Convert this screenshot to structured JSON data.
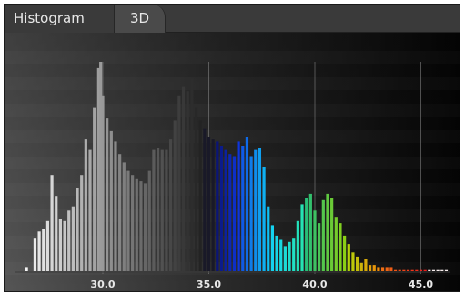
{
  "tabs": [
    {
      "label": "Histogram",
      "active": false
    },
    {
      "label": "3D",
      "active": true
    }
  ],
  "chart_data": {
    "type": "bar",
    "x_ticks": [
      30.0,
      35.0,
      40.0,
      45.0
    ],
    "x_tick_labels": [
      "30.0",
      "35.0",
      "40.0",
      "45.0"
    ],
    "xlim": [
      26.0,
      46.4
    ],
    "ylim": [
      0,
      100
    ],
    "grid": "vertical lines at ticks",
    "x": [
      26.4,
      26.8,
      27.0,
      27.2,
      27.4,
      27.6,
      27.8,
      28.0,
      28.2,
      28.4,
      28.6,
      28.8,
      29.0,
      29.2,
      29.4,
      29.6,
      29.8,
      29.9,
      30.0,
      30.2,
      30.4,
      30.6,
      30.8,
      31.0,
      31.2,
      31.4,
      31.6,
      31.8,
      32.0,
      32.2,
      32.4,
      32.6,
      32.8,
      33.0,
      33.2,
      33.4,
      33.6,
      33.8,
      34.0,
      34.2,
      34.4,
      34.6,
      34.8,
      35.0,
      35.2,
      35.4,
      35.6,
      35.8,
      36.0,
      36.2,
      36.4,
      36.6,
      36.8,
      37.0,
      37.2,
      37.4,
      37.6,
      37.8,
      38.0,
      38.2,
      38.4,
      38.6,
      38.8,
      39.0,
      39.2,
      39.4,
      39.6,
      39.8,
      40.0,
      40.2,
      40.4,
      40.6,
      40.8,
      41.0,
      41.2,
      41.4,
      41.6,
      41.8,
      42.0,
      42.2,
      42.4,
      42.6,
      42.8,
      43.0,
      43.2,
      43.4,
      43.6,
      43.8,
      44.0,
      44.2,
      44.4,
      44.6,
      44.8,
      45.0,
      45.2,
      45.4,
      45.6,
      45.8,
      46.0,
      46.2
    ],
    "values": [
      2,
      16,
      19,
      20,
      24,
      46,
      36,
      25,
      24,
      29,
      31,
      40,
      46,
      63,
      58,
      78,
      97,
      100,
      84,
      73,
      67,
      62,
      56,
      52,
      48,
      46,
      44,
      43,
      42,
      48,
      58,
      59,
      58,
      58,
      63,
      72,
      84,
      88,
      86,
      92,
      78,
      72,
      68,
      64,
      63,
      62,
      60,
      58,
      56,
      55,
      62,
      60,
      64,
      55,
      58,
      59,
      50,
      31,
      22,
      17,
      15,
      12,
      14,
      16,
      24,
      32,
      35,
      37,
      29,
      23,
      34,
      37,
      35,
      26,
      23,
      17,
      13,
      9,
      7,
      4,
      6,
      3,
      3,
      2,
      2,
      2,
      2,
      1,
      1,
      1,
      1,
      1,
      1,
      1,
      1,
      1,
      1,
      1,
      1,
      1
    ]
  }
}
